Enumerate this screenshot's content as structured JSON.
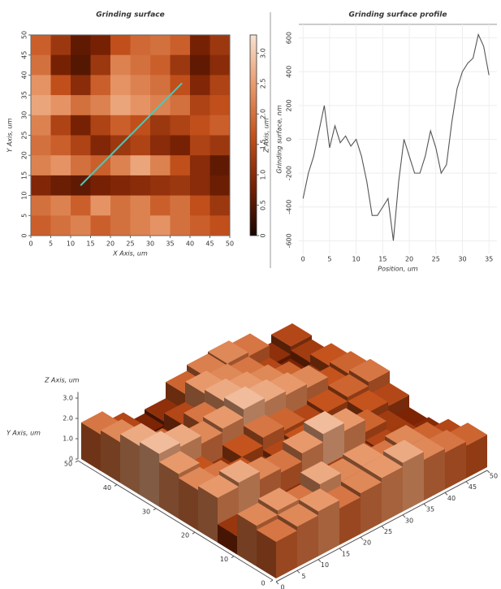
{
  "chart_data": [
    {
      "type": "heatmap",
      "title": "Grinding surface",
      "x_label": "X Axis, um",
      "y_label": "Y Axis, um",
      "colorbar_label": "Z Axis, um",
      "x": [
        2.5,
        7.5,
        12.5,
        17.5,
        22.5,
        27.5,
        32.5,
        37.5,
        42.5,
        47.5
      ],
      "y": [
        47.5,
        42.5,
        37.5,
        32.5,
        27.5,
        22.5,
        17.5,
        12.5,
        7.5,
        2.5
      ],
      "z": [
        [
          1.8,
          1.2,
          0.6,
          0.8,
          1.6,
          1.9,
          2.0,
          1.8,
          0.8,
          1.2
        ],
        [
          2.0,
          0.8,
          0.5,
          1.2,
          2.2,
          2.0,
          1.8,
          1.2,
          0.6,
          1.0
        ],
        [
          2.4,
          1.6,
          1.0,
          1.8,
          2.4,
          2.2,
          2.0,
          1.6,
          0.9,
          1.4
        ],
        [
          2.6,
          2.4,
          2.0,
          2.2,
          2.6,
          2.4,
          2.2,
          2.0,
          1.4,
          1.6
        ],
        [
          2.2,
          1.4,
          0.8,
          1.4,
          1.8,
          1.6,
          1.2,
          1.4,
          1.6,
          1.8
        ],
        [
          2.0,
          1.8,
          1.4,
          0.9,
          1.2,
          1.4,
          1.0,
          0.8,
          1.4,
          1.2
        ],
        [
          2.2,
          2.4,
          2.0,
          1.8,
          2.2,
          2.6,
          2.2,
          1.6,
          1.0,
          0.6
        ],
        [
          0.9,
          0.7,
          0.6,
          0.8,
          0.9,
          1.0,
          1.1,
          1.2,
          1.0,
          0.7
        ],
        [
          2.0,
          2.2,
          1.8,
          2.4,
          2.0,
          2.2,
          1.8,
          2.0,
          1.6,
          1.2
        ],
        [
          1.8,
          2.0,
          2.2,
          1.8,
          2.0,
          2.2,
          2.4,
          2.0,
          1.8,
          1.6
        ]
      ],
      "colorscale": [
        "#1a0500",
        "#7a2204",
        "#c4521c",
        "#e89a6c",
        "#f8e2d2"
      ],
      "xlim": [
        0,
        50
      ],
      "ylim": [
        0,
        50
      ],
      "zlim": [
        0,
        3.3
      ],
      "xticks": [
        0,
        5,
        10,
        15,
        20,
        25,
        30,
        35,
        40,
        45,
        50
      ],
      "yticks": [
        0,
        5,
        10,
        15,
        20,
        25,
        30,
        35,
        40,
        45,
        50
      ],
      "zticks": [
        0,
        0.5,
        {
          "value": 1,
          "label": "1.0"
        },
        1.5,
        {
          "value": 2,
          "label": "2.0"
        },
        2.5,
        {
          "value": 3,
          "label": "3.0"
        }
      ],
      "profile_line": {
        "x": [
          12.5,
          38
        ],
        "y": [
          12.5,
          38
        ],
        "color": "#4cc8b8"
      }
    },
    {
      "type": "line",
      "title": "Grinding surface profile",
      "x_label": "Position, um",
      "y_label": "Grinding surface, nm",
      "x": [
        0,
        1,
        2,
        3,
        4,
        5,
        6,
        7,
        8,
        9,
        10,
        11,
        12,
        13,
        14,
        15,
        16,
        17,
        18,
        19,
        20,
        21,
        22,
        23,
        24,
        25,
        26,
        27,
        28,
        29,
        30,
        31,
        32,
        33,
        34,
        35
      ],
      "series": [
        {
          "color": "#555555",
          "values": [
            -350,
            -200,
            -100,
            50,
            200,
            -50,
            80,
            -20,
            20,
            -40,
            0,
            -100,
            -250,
            -450,
            -450,
            -400,
            -350,
            -600,
            -250,
            0,
            -100,
            -200,
            -200,
            -100,
            50,
            -50,
            -200,
            -150,
            100,
            300,
            400,
            450,
            480,
            620,
            550,
            380
          ]
        }
      ],
      "xlim": [
        -0.8,
        36.5
      ],
      "ylim": [
        -680,
        680
      ],
      "xticks": [
        0,
        5,
        10,
        15,
        20,
        25,
        30,
        35
      ],
      "yticks": [
        -600,
        -400,
        -200,
        0,
        200,
        400,
        600
      ],
      "grid": true
    },
    {
      "type": "surface3d",
      "z_label": "Z Axis, um",
      "y_label": "Y Axis, um",
      "x": [
        2.5,
        7.5,
        12.5,
        17.5,
        22.5,
        27.5,
        32.5,
        37.5,
        42.5,
        47.5
      ],
      "y": [
        47.5,
        42.5,
        37.5,
        32.5,
        27.5,
        22.5,
        17.5,
        12.5,
        7.5,
        2.5
      ],
      "z": [
        [
          1.8,
          1.2,
          0.6,
          0.8,
          1.6,
          1.9,
          2.0,
          1.8,
          0.8,
          1.2
        ],
        [
          2.0,
          0.8,
          0.5,
          1.2,
          2.2,
          2.0,
          1.8,
          1.2,
          0.6,
          1.0
        ],
        [
          2.4,
          1.6,
          1.0,
          1.8,
          2.4,
          2.2,
          2.0,
          1.6,
          0.9,
          1.4
        ],
        [
          2.6,
          2.4,
          2.0,
          2.2,
          2.6,
          2.4,
          2.2,
          2.0,
          1.4,
          1.6
        ],
        [
          2.2,
          1.4,
          0.8,
          1.4,
          1.8,
          1.6,
          1.2,
          1.4,
          1.6,
          1.8
        ],
        [
          2.0,
          1.8,
          1.4,
          0.9,
          1.2,
          1.4,
          1.0,
          0.8,
          1.4,
          1.2
        ],
        [
          2.2,
          2.4,
          2.0,
          1.8,
          2.2,
          2.6,
          2.2,
          1.6,
          1.0,
          0.6
        ],
        [
          0.9,
          0.7,
          0.6,
          0.8,
          0.9,
          1.0,
          1.1,
          1.2,
          1.0,
          0.7
        ],
        [
          2.0,
          2.2,
          1.8,
          2.4,
          2.0,
          2.2,
          1.8,
          2.0,
          1.6,
          1.2
        ],
        [
          1.8,
          2.0,
          2.2,
          1.8,
          2.0,
          2.2,
          2.4,
          2.0,
          1.8,
          1.6
        ]
      ],
      "colorscale": [
        "#1a0500",
        "#7a2204",
        "#c4521c",
        "#e89a6c",
        "#f8e2d2"
      ],
      "xlim": [
        0,
        50
      ],
      "ylim": [
        0,
        50
      ],
      "zlim": [
        0,
        3.3
      ],
      "xticks": [
        0,
        5,
        10,
        15,
        20,
        25,
        30,
        35,
        40,
        45,
        50
      ],
      "yticks": [
        0,
        10,
        20,
        30,
        40,
        50
      ],
      "zticks": [
        0,
        {
          "value": 1,
          "label": "1.0"
        },
        {
          "value": 2,
          "label": "2.0"
        },
        {
          "value": 3,
          "label": "3.0"
        }
      ]
    }
  ]
}
